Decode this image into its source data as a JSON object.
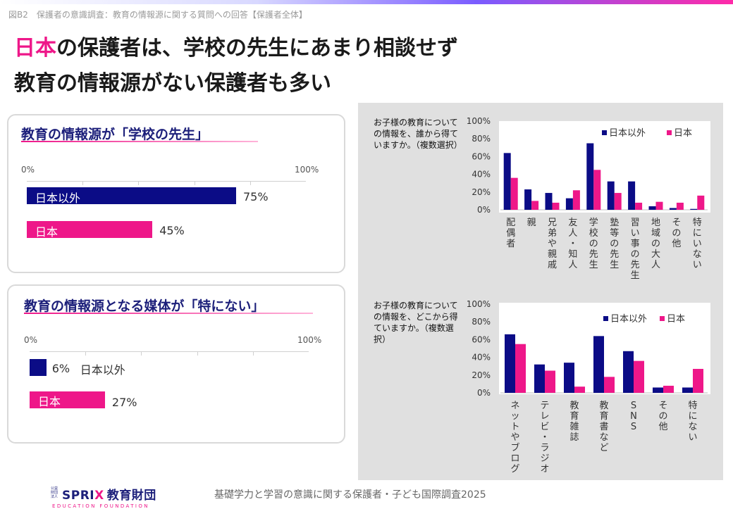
{
  "figure_label": "図B2　保護者の意識調査：教育の情報源に関する質問への回答【保護者全体】",
  "headline": {
    "line1_highlight": "日本",
    "line1_rest": "の保護者は、学校の先生にあまり相談せず",
    "line2": "教育の情報源がない保護者も多い"
  },
  "colors": {
    "outside_japan": "#0b0c86",
    "japan": "#ee1789",
    "panel_bg": "#e0e0e0"
  },
  "card1": {
    "title": "教育の情報源が「学校の先生」",
    "axis_min": "0%",
    "axis_max": "100%",
    "bars": [
      {
        "label": "日本以外",
        "value": 75,
        "value_text": "75%"
      },
      {
        "label": "日本",
        "value": 45,
        "value_text": "45%"
      }
    ]
  },
  "card2": {
    "title": "教育の情報源となる媒体が「特にない」",
    "axis_min": "0%",
    "axis_max": "100%",
    "bars": [
      {
        "label": "日本以外",
        "value": 6,
        "value_text": "6%"
      },
      {
        "label": "日本",
        "value": 27,
        "value_text": "27%"
      }
    ]
  },
  "chart_data": [
    {
      "type": "bar",
      "title": "お子様の教育についての情報を、誰から得ていますか。（複数選択）",
      "categories": [
        "配偶者",
        "親",
        "兄弟や親戚",
        "友人・知人",
        "学校の先生",
        "塾等の先生",
        "習い事の先生",
        "地域の大人",
        "その他",
        "特にいない"
      ],
      "series": [
        {
          "name": "日本以外",
          "values": [
            64,
            23,
            19,
            13,
            75,
            32,
            32,
            4,
            2,
            1
          ]
        },
        {
          "name": "日本",
          "values": [
            36,
            10,
            8,
            22,
            45,
            19,
            8,
            9,
            8,
            16
          ]
        }
      ],
      "y_ticks": [
        "0%",
        "20%",
        "40%",
        "60%",
        "80%",
        "100%"
      ],
      "ylim": [
        0,
        100
      ],
      "legend": "top-right",
      "grid": false
    },
    {
      "type": "bar",
      "title": "お子様の教育についての情報を、どこから得ていますか。（複数選択）",
      "categories": [
        "ネットやブログ",
        "テレビ・ラジオ",
        "教育雑誌",
        "教育書など",
        "SNS",
        "その他",
        "特にない"
      ],
      "series": [
        {
          "name": "日本以外",
          "values": [
            66,
            32,
            34,
            64,
            47,
            6,
            6
          ]
        },
        {
          "name": "日本",
          "values": [
            55,
            25,
            7,
            18,
            36,
            8,
            27
          ]
        }
      ],
      "y_ticks": [
        "0%",
        "20%",
        "40%",
        "60%",
        "80%",
        "100%"
      ],
      "ylim": [
        0,
        100
      ],
      "legend": "top-right",
      "grid": false
    }
  ],
  "footer": {
    "logo_main": "SPRI",
    "logo_x": "X",
    "logo_jp": "教育財団",
    "logo_small": "公益財団法人",
    "logo_sub": "EDUCATION FOUNDATION",
    "text": "基礎学力と学習の意識に関する保護者・子ども国際調査2025"
  }
}
